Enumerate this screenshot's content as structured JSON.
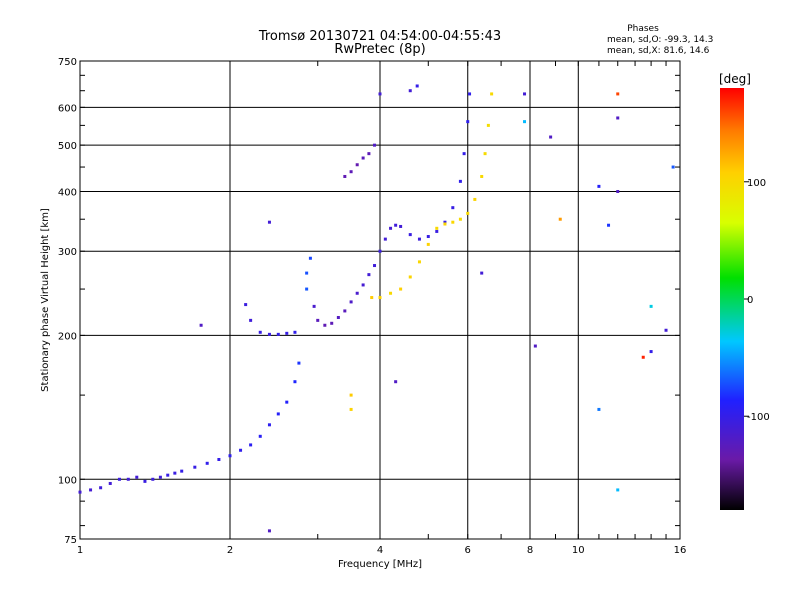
{
  "chart_data": {
    "type": "scatter",
    "title": "Tromsø 20130721 04:54:00-04:55:43",
    "subtitle": "RwPretec (8p)",
    "xlabel": "Frequency [MHz]",
    "ylabel": "Stationary phase Virtual Height [km]",
    "x_scale": "log",
    "y_scale": "log",
    "xlim": [
      1,
      16
    ],
    "ylim": [
      75,
      750
    ],
    "x_ticks": [
      1,
      2,
      4,
      6,
      8,
      10,
      16
    ],
    "y_ticks": [
      75,
      100,
      200,
      300,
      400,
      500,
      600,
      750
    ],
    "grid": true,
    "phases_header": "Phases",
    "phase_stats": [
      "mean, sd,O: -99.3, 14.3",
      "mean, sd,X: 81.6, 14.6"
    ],
    "colorbar": {
      "label": "[deg]",
      "ticks": [
        100,
        0,
        -100
      ],
      "range": [
        -180,
        180
      ],
      "scheme": "rainbow: black-purple-blue-cyan-green-yellow-orange-red"
    },
    "points": [
      {
        "x": 1.0,
        "y": 94,
        "p": -110
      },
      {
        "x": 1.05,
        "y": 95,
        "p": -112
      },
      {
        "x": 1.1,
        "y": 96,
        "p": -108
      },
      {
        "x": 1.15,
        "y": 98,
        "p": -110
      },
      {
        "x": 1.2,
        "y": 100,
        "p": -105
      },
      {
        "x": 1.25,
        "y": 100,
        "p": -108
      },
      {
        "x": 1.3,
        "y": 101,
        "p": -110
      },
      {
        "x": 1.35,
        "y": 99,
        "p": -104
      },
      {
        "x": 1.4,
        "y": 100,
        "p": -106
      },
      {
        "x": 1.45,
        "y": 101,
        "p": -108
      },
      {
        "x": 1.5,
        "y": 102,
        "p": -102
      },
      {
        "x": 1.55,
        "y": 103,
        "p": -104
      },
      {
        "x": 1.6,
        "y": 104,
        "p": -100
      },
      {
        "x": 1.7,
        "y": 106,
        "p": -102
      },
      {
        "x": 1.8,
        "y": 108,
        "p": -98
      },
      {
        "x": 1.9,
        "y": 110,
        "p": -100
      },
      {
        "x": 2.0,
        "y": 112,
        "p": -96
      },
      {
        "x": 2.1,
        "y": 115,
        "p": -98
      },
      {
        "x": 2.2,
        "y": 118,
        "p": -94
      },
      {
        "x": 2.3,
        "y": 123,
        "p": -92
      },
      {
        "x": 2.4,
        "y": 130,
        "p": -95
      },
      {
        "x": 2.5,
        "y": 137,
        "p": -90
      },
      {
        "x": 2.6,
        "y": 145,
        "p": -88
      },
      {
        "x": 2.7,
        "y": 160,
        "p": -85
      },
      {
        "x": 2.75,
        "y": 175,
        "p": -80
      },
      {
        "x": 2.15,
        "y": 232,
        "p": -105
      },
      {
        "x": 2.2,
        "y": 215,
        "p": -108
      },
      {
        "x": 2.3,
        "y": 203,
        "p": -102
      },
      {
        "x": 2.4,
        "y": 201,
        "p": -104
      },
      {
        "x": 2.5,
        "y": 201,
        "p": -100
      },
      {
        "x": 2.6,
        "y": 202,
        "p": -102
      },
      {
        "x": 2.7,
        "y": 203,
        "p": -98
      },
      {
        "x": 2.85,
        "y": 250,
        "p": -70
      },
      {
        "x": 2.85,
        "y": 270,
        "p": -72
      },
      {
        "x": 2.9,
        "y": 290,
        "p": -75
      },
      {
        "x": 2.95,
        "y": 230,
        "p": -115
      },
      {
        "x": 3.0,
        "y": 215,
        "p": -125
      },
      {
        "x": 3.1,
        "y": 210,
        "p": -130
      },
      {
        "x": 3.2,
        "y": 212,
        "p": -128
      },
      {
        "x": 3.3,
        "y": 218,
        "p": -122
      },
      {
        "x": 3.4,
        "y": 225,
        "p": -125
      },
      {
        "x": 3.5,
        "y": 235,
        "p": -118
      },
      {
        "x": 3.6,
        "y": 245,
        "p": -115
      },
      {
        "x": 3.7,
        "y": 255,
        "p": -112
      },
      {
        "x": 3.8,
        "y": 268,
        "p": -110
      },
      {
        "x": 3.9,
        "y": 280,
        "p": -108
      },
      {
        "x": 4.0,
        "y": 300,
        "p": -105
      },
      {
        "x": 4.1,
        "y": 318,
        "p": -110
      },
      {
        "x": 4.2,
        "y": 335,
        "p": -112
      },
      {
        "x": 4.3,
        "y": 340,
        "p": -108
      },
      {
        "x": 4.4,
        "y": 338,
        "p": -110
      },
      {
        "x": 4.6,
        "y": 325,
        "p": -104
      },
      {
        "x": 4.8,
        "y": 318,
        "p": -106
      },
      {
        "x": 5.0,
        "y": 322,
        "p": -102
      },
      {
        "x": 5.2,
        "y": 330,
        "p": -104
      },
      {
        "x": 5.4,
        "y": 345,
        "p": -100
      },
      {
        "x": 5.6,
        "y": 370,
        "p": -102
      },
      {
        "x": 5.8,
        "y": 420,
        "p": -98
      },
      {
        "x": 5.9,
        "y": 480,
        "p": -100
      },
      {
        "x": 6.0,
        "y": 560,
        "p": -96
      },
      {
        "x": 6.05,
        "y": 640,
        "p": -98
      },
      {
        "x": 3.4,
        "y": 430,
        "p": -130
      },
      {
        "x": 3.5,
        "y": 440,
        "p": -128
      },
      {
        "x": 3.6,
        "y": 455,
        "p": -132
      },
      {
        "x": 3.7,
        "y": 470,
        "p": -125
      },
      {
        "x": 3.8,
        "y": 480,
        "p": -128
      },
      {
        "x": 3.9,
        "y": 500,
        "p": -120
      },
      {
        "x": 4.0,
        "y": 640,
        "p": -110
      },
      {
        "x": 3.85,
        "y": 240,
        "p": 110
      },
      {
        "x": 4.0,
        "y": 240,
        "p": 105
      },
      {
        "x": 4.2,
        "y": 245,
        "p": 100
      },
      {
        "x": 4.4,
        "y": 250,
        "p": 108
      },
      {
        "x": 4.6,
        "y": 265,
        "p": 104
      },
      {
        "x": 4.8,
        "y": 285,
        "p": 102
      },
      {
        "x": 5.0,
        "y": 310,
        "p": 106
      },
      {
        "x": 5.2,
        "y": 335,
        "p": 100
      },
      {
        "x": 5.4,
        "y": 342,
        "p": 104
      },
      {
        "x": 5.6,
        "y": 345,
        "p": 102
      },
      {
        "x": 5.8,
        "y": 350,
        "p": 98
      },
      {
        "x": 6.0,
        "y": 360,
        "p": 100
      },
      {
        "x": 6.2,
        "y": 385,
        "p": 104
      },
      {
        "x": 6.4,
        "y": 430,
        "p": 100
      },
      {
        "x": 6.5,
        "y": 480,
        "p": 98
      },
      {
        "x": 6.6,
        "y": 550,
        "p": 96
      },
      {
        "x": 6.7,
        "y": 640,
        "p": 100
      },
      {
        "x": 3.5,
        "y": 150,
        "p": 110
      },
      {
        "x": 3.5,
        "y": 140,
        "p": 105
      },
      {
        "x": 12.0,
        "y": 640,
        "p": 160
      },
      {
        "x": 12.0,
        "y": 570,
        "p": -120
      },
      {
        "x": 11.0,
        "y": 410,
        "p": -90
      },
      {
        "x": 12.0,
        "y": 400,
        "p": -120
      },
      {
        "x": 11.5,
        "y": 340,
        "p": -80
      },
      {
        "x": 14.0,
        "y": 230,
        "p": -30
      },
      {
        "x": 15.0,
        "y": 205,
        "p": -110
      },
      {
        "x": 14.0,
        "y": 185,
        "p": -100
      },
      {
        "x": 13.5,
        "y": 180,
        "p": 170
      },
      {
        "x": 8.2,
        "y": 190,
        "p": -120
      },
      {
        "x": 11.0,
        "y": 140,
        "p": -60
      },
      {
        "x": 12.0,
        "y": 95,
        "p": -40
      },
      {
        "x": 8.8,
        "y": 520,
        "p": -120
      },
      {
        "x": 7.8,
        "y": 640,
        "p": -110
      },
      {
        "x": 7.8,
        "y": 560,
        "p": -40
      },
      {
        "x": 6.4,
        "y": 270,
        "p": -110
      },
      {
        "x": 4.3,
        "y": 160,
        "p": -120
      },
      {
        "x": 2.4,
        "y": 345,
        "p": -110
      },
      {
        "x": 1.75,
        "y": 210,
        "p": -120
      },
      {
        "x": 2.4,
        "y": 78,
        "p": -120
      },
      {
        "x": 4.6,
        "y": 650,
        "p": -110
      },
      {
        "x": 4.75,
        "y": 665,
        "p": -100
      },
      {
        "x": 9.2,
        "y": 350,
        "p": 130
      },
      {
        "x": 15.5,
        "y": 450,
        "p": -70
      }
    ]
  }
}
